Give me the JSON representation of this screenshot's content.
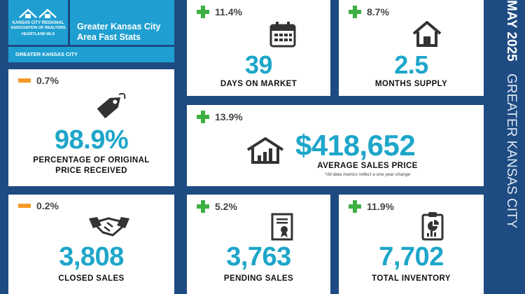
{
  "header": {
    "org_line1": "KANSAS CITY REGIONAL",
    "org_line2": "ASSOCIATION OF REALTORS",
    "org_line3": "HEARTLAND MLS",
    "tagline_line1": "Greater Kansas City",
    "tagline_line2": "Area Fast Stats",
    "region_tab": "GREATER KANSAS CITY"
  },
  "side": {
    "month": "MAY 2025",
    "region": "GREATER KANSAS CITY"
  },
  "stats": {
    "days_on_market": {
      "change": "11.4%",
      "direction": "up",
      "value": "39",
      "label": "DAYS ON MARKET",
      "icon": "calendar-icon"
    },
    "months_supply": {
      "change": "8.7%",
      "direction": "up",
      "value": "2.5",
      "label": "MONTHS SUPPLY",
      "icon": "house-icon"
    },
    "pct_original_price": {
      "change": "0.7%",
      "direction": "down",
      "value": "98.9%",
      "label_line1": "PERCENTAGE OF ORIGINAL",
      "label_line2": "PRICE RECEIVED",
      "icon": "price-tag-icon"
    },
    "avg_sales_price": {
      "change": "13.9%",
      "direction": "up",
      "value": "$418,652",
      "label": "AVERAGE SALES PRICE",
      "note": "*All data metrics reflect a one year change",
      "icon": "house-chart-icon"
    },
    "closed_sales": {
      "change": "0.2%",
      "direction": "down",
      "value": "3,808",
      "label": "CLOSED SALES",
      "icon": "handshake-icon"
    },
    "pending_sales": {
      "change": "5.2%",
      "direction": "up",
      "value": "3,763",
      "label": "PENDING SALES",
      "icon": "certificate-icon"
    },
    "total_inventory": {
      "change": "11.9%",
      "direction": "up",
      "value": "7,702",
      "label": "TOTAL INVENTORY",
      "icon": "clipboard-chart-icon"
    }
  },
  "colors": {
    "background": "#1e4b82",
    "accent_teal": "#1da6c9",
    "positive": "#3cb043",
    "negative": "#f39a26",
    "header_blue": "#1f9fd1"
  }
}
